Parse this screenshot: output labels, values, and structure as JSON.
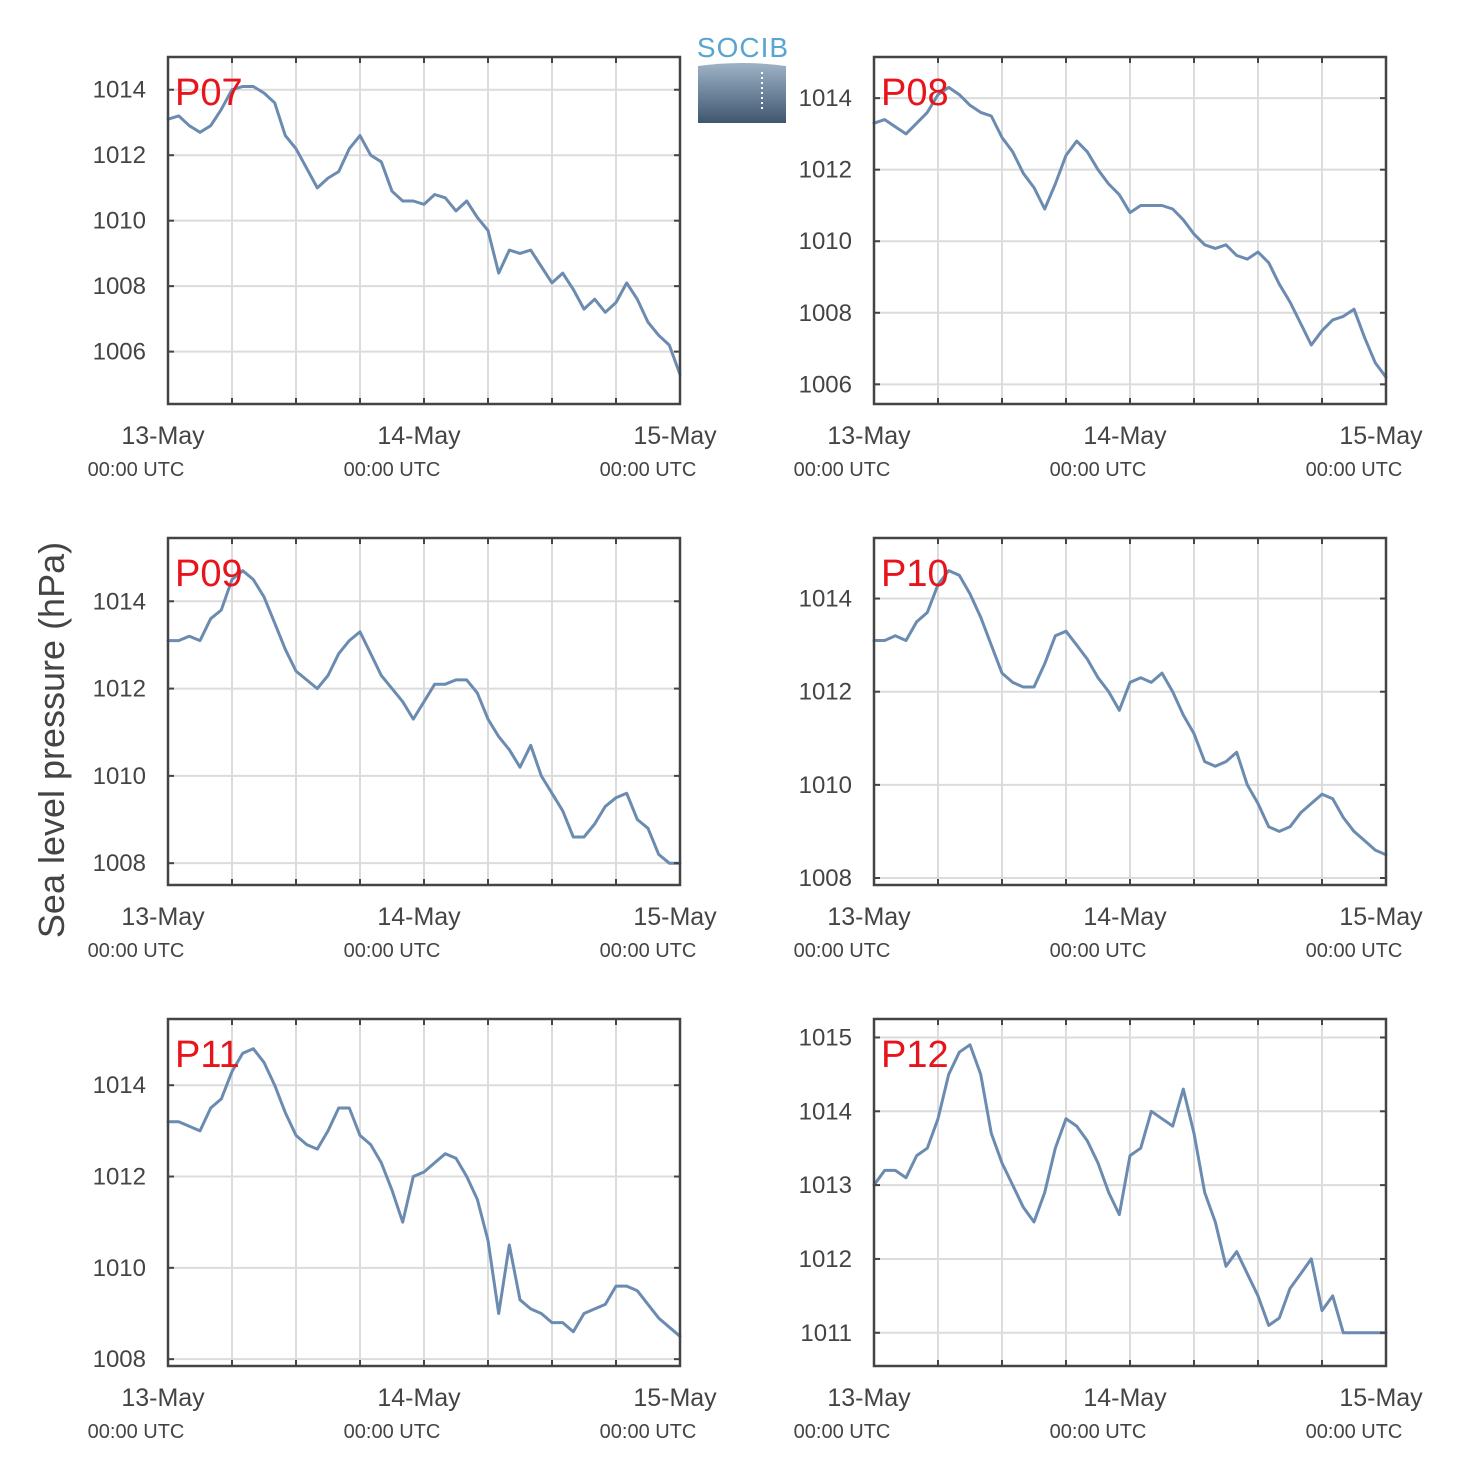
{
  "figure": {
    "ylabel": "Sea level pressure (hPa)",
    "logo_text": "SOCIB"
  },
  "colors": {
    "line": "#6b8bb0",
    "title": "#e8141c",
    "grid": "#dcdcdc",
    "axis": "#444444"
  },
  "chart_data": [
    {
      "type": "line",
      "title": "P07",
      "x_ticks": [
        {
          "label": "13-May",
          "sub": "00:00 UTC"
        },
        {
          "label": "14-May",
          "sub": "00:00 UTC"
        },
        {
          "label": "15-May",
          "sub": "00:00 UTC"
        }
      ],
      "xlim": [
        "2016-05-13 00:00",
        "2016-05-15 00:00"
      ],
      "yticks": [
        1006,
        1008,
        1010,
        1012,
        1014
      ],
      "ylim": [
        1004.4,
        1015.0
      ],
      "grid": true,
      "series": [
        {
          "x_hours": [
            0,
            1,
            2,
            3,
            4,
            5,
            6,
            7,
            8,
            9,
            10,
            11,
            12,
            13,
            14,
            15,
            16,
            17,
            18,
            19,
            20,
            21,
            22,
            23,
            24,
            25,
            26,
            27,
            28,
            29,
            30,
            31,
            32,
            33,
            34,
            35,
            36,
            37,
            38,
            39,
            40,
            41,
            42,
            43,
            44,
            45,
            46,
            47,
            48
          ],
          "values": [
            1013.1,
            1013.2,
            1012.9,
            1012.7,
            1012.9,
            1013.4,
            1014.0,
            1014.1,
            1014.1,
            1013.9,
            1013.6,
            1012.6,
            1012.2,
            1011.6,
            1011.0,
            1011.3,
            1011.5,
            1012.2,
            1012.6,
            1012.0,
            1011.8,
            1010.9,
            1010.6,
            1010.6,
            1010.5,
            1010.8,
            1010.7,
            1010.3,
            1010.6,
            1010.1,
            1009.7,
            1008.4,
            1009.1,
            1009.0,
            1009.1,
            1008.6,
            1008.1,
            1008.4,
            1007.9,
            1007.3,
            1007.6,
            1007.2,
            1007.5,
            1008.1,
            1007.6,
            1006.9,
            1006.5,
            1006.2,
            1005.3
          ]
        }
      ]
    },
    {
      "type": "line",
      "title": "P08",
      "x_ticks": [
        {
          "label": "13-May",
          "sub": "00:00 UTC"
        },
        {
          "label": "14-May",
          "sub": "00:00 UTC"
        },
        {
          "label": "15-May",
          "sub": "00:00 UTC"
        }
      ],
      "xlim": [
        "2016-05-13 00:00",
        "2016-05-15 00:00"
      ],
      "yticks": [
        1006,
        1008,
        1010,
        1012,
        1014
      ],
      "ylim": [
        1005.45,
        1015.15
      ],
      "grid": true,
      "series": [
        {
          "x_hours": [
            0,
            1,
            2,
            3,
            4,
            5,
            6,
            7,
            8,
            9,
            10,
            11,
            12,
            13,
            14,
            15,
            16,
            17,
            18,
            19,
            20,
            21,
            22,
            23,
            24,
            25,
            26,
            27,
            28,
            29,
            30,
            31,
            32,
            33,
            34,
            35,
            36,
            37,
            38,
            39,
            40,
            41,
            42,
            43,
            44,
            45,
            46,
            47,
            48
          ],
          "values": [
            1013.3,
            1013.4,
            1013.2,
            1013.0,
            1013.3,
            1013.6,
            1014.1,
            1014.3,
            1014.1,
            1013.8,
            1013.6,
            1013.5,
            1012.9,
            1012.5,
            1011.9,
            1011.5,
            1010.9,
            1011.6,
            1012.4,
            1012.8,
            1012.5,
            1012.0,
            1011.6,
            1011.3,
            1010.8,
            1011.0,
            1011.0,
            1011.0,
            1010.9,
            1010.6,
            1010.2,
            1009.9,
            1009.8,
            1009.9,
            1009.6,
            1009.5,
            1009.7,
            1009.4,
            1008.8,
            1008.3,
            1007.7,
            1007.1,
            1007.5,
            1007.8,
            1007.9,
            1008.1,
            1007.3,
            1006.6,
            1006.2
          ]
        }
      ]
    },
    {
      "type": "line",
      "title": "P09",
      "x_ticks": [
        {
          "label": "13-May",
          "sub": "00:00 UTC"
        },
        {
          "label": "14-May",
          "sub": "00:00 UTC"
        },
        {
          "label": "15-May",
          "sub": "00:00 UTC"
        }
      ],
      "xlim": [
        "2016-05-13 00:00",
        "2016-05-15 00:00"
      ],
      "yticks": [
        1008,
        1010,
        1012,
        1014
      ],
      "ylim": [
        1007.5,
        1015.45
      ],
      "grid": true,
      "series": [
        {
          "x_hours": [
            0,
            1,
            2,
            3,
            4,
            5,
            6,
            7,
            8,
            9,
            10,
            11,
            12,
            13,
            14,
            15,
            16,
            17,
            18,
            19,
            20,
            21,
            22,
            23,
            24,
            25,
            26,
            27,
            28,
            29,
            30,
            31,
            32,
            33,
            34,
            35,
            36,
            37,
            38,
            39,
            40,
            41,
            42,
            43,
            44,
            45,
            46,
            47,
            48
          ],
          "values": [
            1013.1,
            1013.1,
            1013.2,
            1013.1,
            1013.6,
            1013.8,
            1014.5,
            1014.7,
            1014.5,
            1014.1,
            1013.5,
            1012.9,
            1012.4,
            1012.2,
            1012.0,
            1012.3,
            1012.8,
            1013.1,
            1013.3,
            1012.8,
            1012.3,
            1012.0,
            1011.7,
            1011.3,
            1011.7,
            1012.1,
            1012.1,
            1012.2,
            1012.2,
            1011.9,
            1011.3,
            1010.9,
            1010.6,
            1010.2,
            1010.7,
            1010.0,
            1009.6,
            1009.2,
            1008.6,
            1008.6,
            1008.9,
            1009.3,
            1009.5,
            1009.6,
            1009.0,
            1008.8,
            1008.2,
            1008.0,
            1008.0
          ]
        }
      ]
    },
    {
      "type": "line",
      "title": "P10",
      "x_ticks": [
        {
          "label": "13-May",
          "sub": "00:00 UTC"
        },
        {
          "label": "14-May",
          "sub": "00:00 UTC"
        },
        {
          "label": "15-May",
          "sub": "00:00 UTC"
        }
      ],
      "xlim": [
        "2016-05-13 00:00",
        "2016-05-15 00:00"
      ],
      "yticks": [
        1008,
        1010,
        1012,
        1014
      ],
      "ylim": [
        1007.85,
        1015.3
      ],
      "grid": true,
      "series": [
        {
          "x_hours": [
            0,
            1,
            2,
            3,
            4,
            5,
            6,
            7,
            8,
            9,
            10,
            11,
            12,
            13,
            14,
            15,
            16,
            17,
            18,
            19,
            20,
            21,
            22,
            23,
            24,
            25,
            26,
            27,
            28,
            29,
            30,
            31,
            32,
            33,
            34,
            35,
            36,
            37,
            38,
            39,
            40,
            41,
            42,
            43,
            44,
            45,
            46,
            47,
            48
          ],
          "values": [
            1013.1,
            1013.1,
            1013.2,
            1013.1,
            1013.5,
            1013.7,
            1014.3,
            1014.6,
            1014.5,
            1014.1,
            1013.6,
            1013.0,
            1012.4,
            1012.2,
            1012.1,
            1012.1,
            1012.6,
            1013.2,
            1013.3,
            1013.0,
            1012.7,
            1012.3,
            1012.0,
            1011.6,
            1012.2,
            1012.3,
            1012.2,
            1012.4,
            1012.0,
            1011.5,
            1011.1,
            1010.5,
            1010.4,
            1010.5,
            1010.7,
            1010.0,
            1009.6,
            1009.1,
            1009.0,
            1009.1,
            1009.4,
            1009.6,
            1009.8,
            1009.7,
            1009.3,
            1009.0,
            1008.8,
            1008.6,
            1008.5
          ]
        }
      ]
    },
    {
      "type": "line",
      "title": "P11",
      "x_ticks": [
        {
          "label": "13-May",
          "sub": "00:00 UTC"
        },
        {
          "label": "14-May",
          "sub": "00:00 UTC"
        },
        {
          "label": "15-May",
          "sub": "00:00 UTC"
        }
      ],
      "xlim": [
        "2016-05-13 00:00",
        "2016-05-15 00:00"
      ],
      "yticks": [
        1008,
        1010,
        1012,
        1014
      ],
      "ylim": [
        1007.85,
        1015.45
      ],
      "grid": true,
      "series": [
        {
          "x_hours": [
            0,
            1,
            2,
            3,
            4,
            5,
            6,
            7,
            8,
            9,
            10,
            11,
            12,
            13,
            14,
            15,
            16,
            17,
            18,
            19,
            20,
            21,
            22,
            23,
            24,
            25,
            26,
            27,
            28,
            29,
            30,
            31,
            32,
            33,
            34,
            35,
            36,
            37,
            38,
            39,
            40,
            41,
            42,
            43,
            44,
            45,
            46,
            47,
            48
          ],
          "values": [
            1013.2,
            1013.2,
            1013.1,
            1013.0,
            1013.5,
            1013.7,
            1014.3,
            1014.7,
            1014.8,
            1014.5,
            1014.0,
            1013.4,
            1012.9,
            1012.7,
            1012.6,
            1013.0,
            1013.5,
            1013.5,
            1012.9,
            1012.7,
            1012.3,
            1011.7,
            1011.0,
            1012.0,
            1012.1,
            1012.3,
            1012.5,
            1012.4,
            1012.0,
            1011.5,
            1010.6,
            1009.0,
            1010.5,
            1009.3,
            1009.1,
            1009.0,
            1008.8,
            1008.8,
            1008.6,
            1009.0,
            1009.1,
            1009.2,
            1009.6,
            1009.6,
            1009.5,
            1009.2,
            1008.9,
            1008.7,
            1008.5
          ]
        }
      ]
    },
    {
      "type": "line",
      "title": "P12",
      "x_ticks": [
        {
          "label": "13-May",
          "sub": "00:00 UTC"
        },
        {
          "label": "14-May",
          "sub": "00:00 UTC"
        },
        {
          "label": "15-May",
          "sub": "00:00 UTC"
        }
      ],
      "xlim": [
        "2016-05-13 00:00",
        "2016-05-15 00:00"
      ],
      "yticks": [
        1011,
        1012,
        1013,
        1014,
        1015
      ],
      "ylim": [
        1010.55,
        1015.25
      ],
      "grid": true,
      "series": [
        {
          "x_hours": [
            0,
            1,
            2,
            3,
            4,
            5,
            6,
            7,
            8,
            9,
            10,
            11,
            12,
            13,
            14,
            15,
            16,
            17,
            18,
            19,
            20,
            21,
            22,
            23,
            24,
            25,
            26,
            27,
            28,
            29,
            30,
            31,
            32,
            33,
            34,
            35,
            36,
            37,
            38,
            39,
            40,
            41,
            42,
            43,
            44,
            45,
            46,
            47,
            48
          ],
          "values": [
            1013.0,
            1013.2,
            1013.2,
            1013.1,
            1013.4,
            1013.5,
            1013.9,
            1014.5,
            1014.8,
            1014.9,
            1014.5,
            1013.7,
            1013.3,
            1013.0,
            1012.7,
            1012.5,
            1012.9,
            1013.5,
            1013.9,
            1013.8,
            1013.6,
            1013.3,
            1012.9,
            1012.6,
            1013.4,
            1013.5,
            1014.0,
            1013.9,
            1013.8,
            1014.3,
            1013.7,
            1012.9,
            1012.5,
            1011.9,
            1012.1,
            1011.8,
            1011.5,
            1011.1,
            1011.2,
            1011.6,
            1011.8,
            1012.0,
            1011.3,
            1011.5,
            1011.0,
            1011.0,
            1011.0,
            1011.0,
            1011.0
          ]
        }
      ]
    }
  ]
}
